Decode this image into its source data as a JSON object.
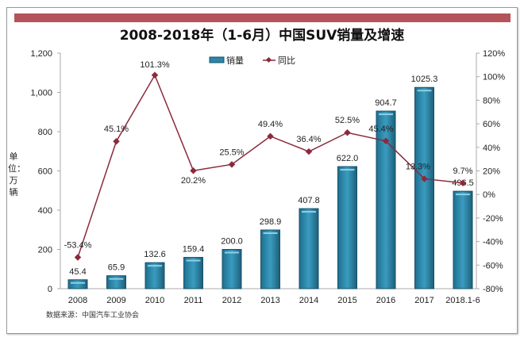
{
  "chart_data": {
    "type": "bar+line",
    "title": "2008-2018年（1-6月）中国SUV销量及增速",
    "ylabel": "单位：万辆",
    "categories": [
      "2008",
      "2009",
      "2010",
      "2011",
      "2012",
      "2013",
      "2014",
      "2015",
      "2016",
      "2017",
      "2018.1-6"
    ],
    "series": [
      {
        "name": "销量",
        "type": "bar",
        "axis": "left",
        "color": "#2e86a8",
        "values": [
          45.4,
          65.9,
          132.6,
          159.4,
          200.0,
          298.9,
          407.8,
          622.0,
          904.7,
          1025.3,
          496.5
        ],
        "labels": [
          "45.4",
          "65.9",
          "132.6",
          "159.4",
          "200.0",
          "298.9",
          "407.8",
          "622.0",
          "904.7",
          "1025.3",
          "496.5"
        ]
      },
      {
        "name": "同比",
        "type": "line",
        "axis": "right",
        "color": "#8b2a3c",
        "values": [
          -53.4,
          45.1,
          101.3,
          20.2,
          25.5,
          49.4,
          36.4,
          52.5,
          45.4,
          13.3,
          9.7
        ],
        "labels": [
          "-53.4%",
          "45.1%",
          "101.3%",
          "20.2%",
          "25.5%",
          "49.4%",
          "36.4%",
          "52.5%",
          "45.4%",
          "13.3%",
          "9.7%"
        ]
      }
    ],
    "ylim": [
      0,
      1200
    ],
    "yticks": [
      "0",
      "200",
      "400",
      "600",
      "800",
      "1,000",
      "1,200"
    ],
    "y2lim": [
      -80,
      120
    ],
    "y2ticks": [
      "-80%",
      "-60%",
      "-40%",
      "-20%",
      "0%",
      "20%",
      "40%",
      "60%",
      "80%",
      "100%",
      "120%"
    ],
    "legend": "top-center",
    "grid": false
  },
  "source": "数据来源：中国汽车工业协会"
}
